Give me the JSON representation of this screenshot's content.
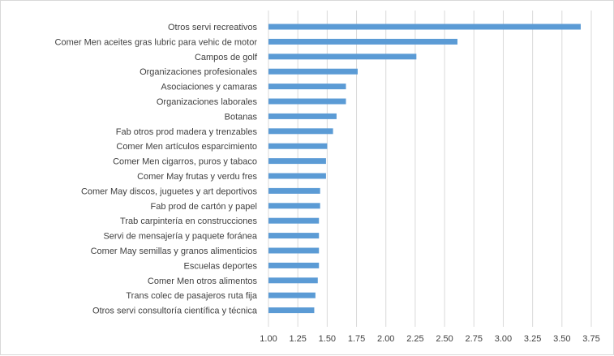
{
  "chart_data": {
    "type": "bar",
    "orientation": "horizontal",
    "categories": [
      "Otros servi recreativos",
      "Comer Men aceites gras lubric para vehic de motor",
      "Campos de golf",
      "Organizaciones profesionales",
      "Asociaciones y camaras",
      "Organizaciones laborales",
      "Botanas",
      "Fab otros prod madera y trenzables",
      "Comer Men artículos esparcimiento",
      "Comer Men cigarros, puros y tabaco",
      "Comer May frutas y verdu fres",
      "Comer May discos, juguetes y art deportivos",
      "Fab prod de cartón y papel",
      "Trab carpintería en construcciones",
      "Servi de mensajería y paquete foránea",
      "Comer May semillas y granos alimenticios",
      "Escuelas deportes",
      "Comer Men otros alimentos",
      "Trans colec de pasajeros ruta fija",
      "Otros servi consultoría científica y técnica"
    ],
    "values": [
      3.66,
      2.61,
      2.26,
      1.76,
      1.66,
      1.66,
      1.58,
      1.55,
      1.5,
      1.49,
      1.49,
      1.44,
      1.44,
      1.43,
      1.43,
      1.43,
      1.43,
      1.42,
      1.4,
      1.39
    ],
    "xlim": [
      1.0,
      3.75
    ],
    "x_ticks": [
      "1.00",
      "1.25",
      "1.50",
      "1.75",
      "2.00",
      "2.25",
      "2.50",
      "2.75",
      "3.00",
      "3.25",
      "3.50",
      "3.75"
    ],
    "x_tick_values": [
      1.0,
      1.25,
      1.5,
      1.75,
      2.0,
      2.25,
      2.5,
      2.75,
      3.0,
      3.25,
      3.5,
      3.75
    ],
    "grid": true,
    "bar_color": "#5b9bd5",
    "grid_color": "#d9d9d9",
    "legend": "none"
  }
}
